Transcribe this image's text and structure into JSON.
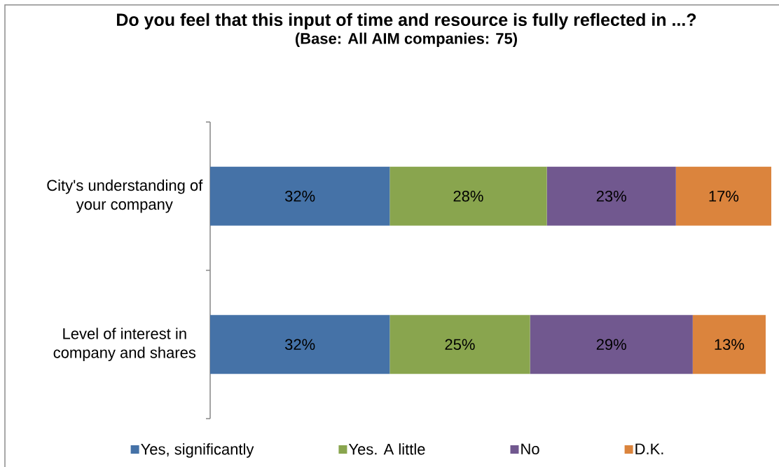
{
  "chart_data": {
    "type": "bar",
    "orientation": "horizontal",
    "stacked": true,
    "title": "Do you feel that this input of time and resource is fully reflected in ...?",
    "subtitle": "(Base: All AIM companies: 75)",
    "categories": [
      "City's understanding of your company",
      "Level of interest in company and shares"
    ],
    "series": [
      {
        "name": "Yes, significantly",
        "color": "#4572A7",
        "values": [
          32,
          32
        ],
        "value_labels": [
          "32%",
          "32%"
        ]
      },
      {
        "name": "Yes. A little",
        "color": "#89A54E",
        "values": [
          28,
          25
        ],
        "value_labels": [
          "28%",
          "25%"
        ]
      },
      {
        "name": "No",
        "color": "#71588F",
        "values": [
          23,
          29
        ],
        "value_labels": [
          "23%",
          "29%"
        ]
      },
      {
        "name": "D.K.",
        "color": "#DB843D",
        "values": [
          17,
          13
        ],
        "value_labels": [
          "17%",
          "13%"
        ]
      }
    ],
    "legend": "bottom"
  }
}
